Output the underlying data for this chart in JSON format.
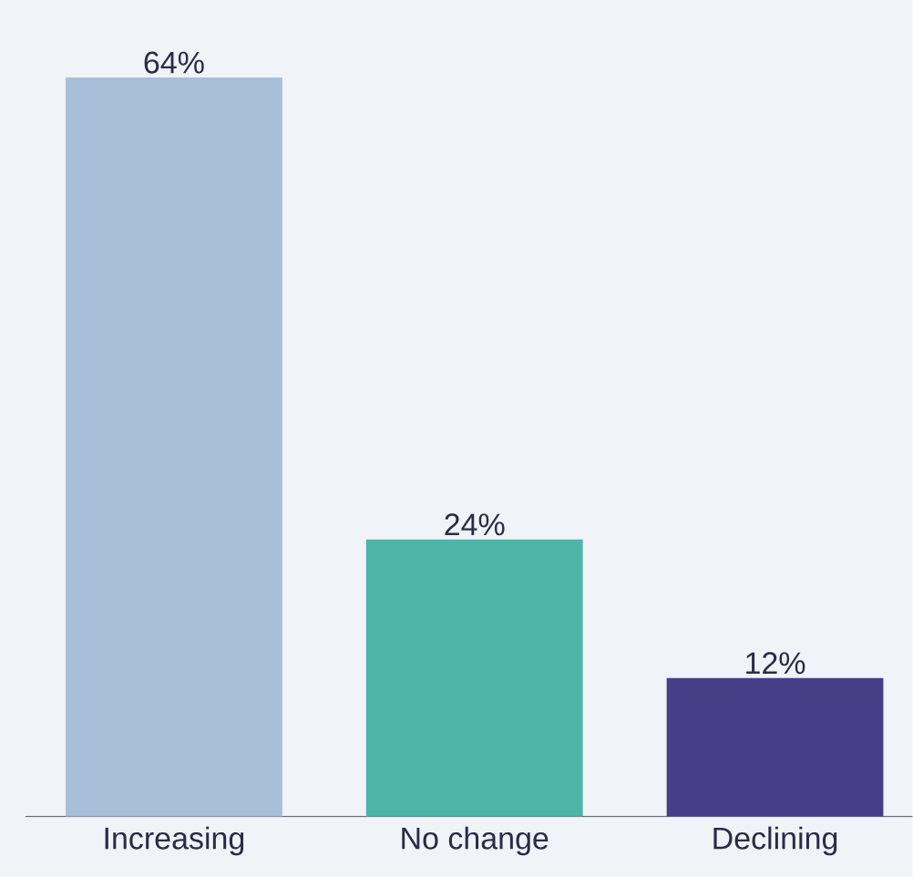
{
  "chart_data": {
    "type": "bar",
    "categories": [
      "Increasing",
      "No change",
      "Declining"
    ],
    "values": [
      64,
      24,
      12
    ],
    "colors": [
      "#a9bed9",
      "#4db6a9",
      "#483e88"
    ],
    "value_labels": [
      "64%",
      "24%",
      "12%"
    ]
  }
}
